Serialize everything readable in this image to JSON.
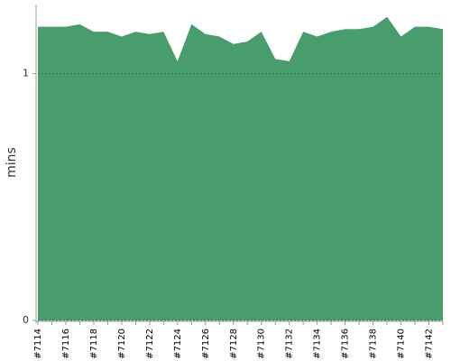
{
  "chart_data": {
    "type": "area",
    "y_label": "mins",
    "categories": [
      "#7114",
      null,
      "#7116",
      null,
      "#7118",
      null,
      "#7120",
      null,
      "#7122",
      null,
      "#7124",
      null,
      "#7126",
      null,
      "#7128",
      null,
      "#7130",
      null,
      "#7132",
      null,
      "#7134",
      null,
      "#7136",
      null,
      "#7138",
      null,
      "#7140",
      null,
      "#7142",
      null
    ],
    "values": [
      1.19,
      1.19,
      1.19,
      1.2,
      1.17,
      1.17,
      1.15,
      1.17,
      1.16,
      1.17,
      1.05,
      1.2,
      1.16,
      1.15,
      1.12,
      1.13,
      1.17,
      1.06,
      1.05,
      1.17,
      1.15,
      1.17,
      1.18,
      1.18,
      1.19,
      1.23,
      1.15,
      1.19,
      1.19,
      1.18
    ],
    "color": "#489d6c",
    "ylim": [
      0,
      1.28
    ],
    "yticks": [
      0,
      1
    ],
    "grid": true
  }
}
